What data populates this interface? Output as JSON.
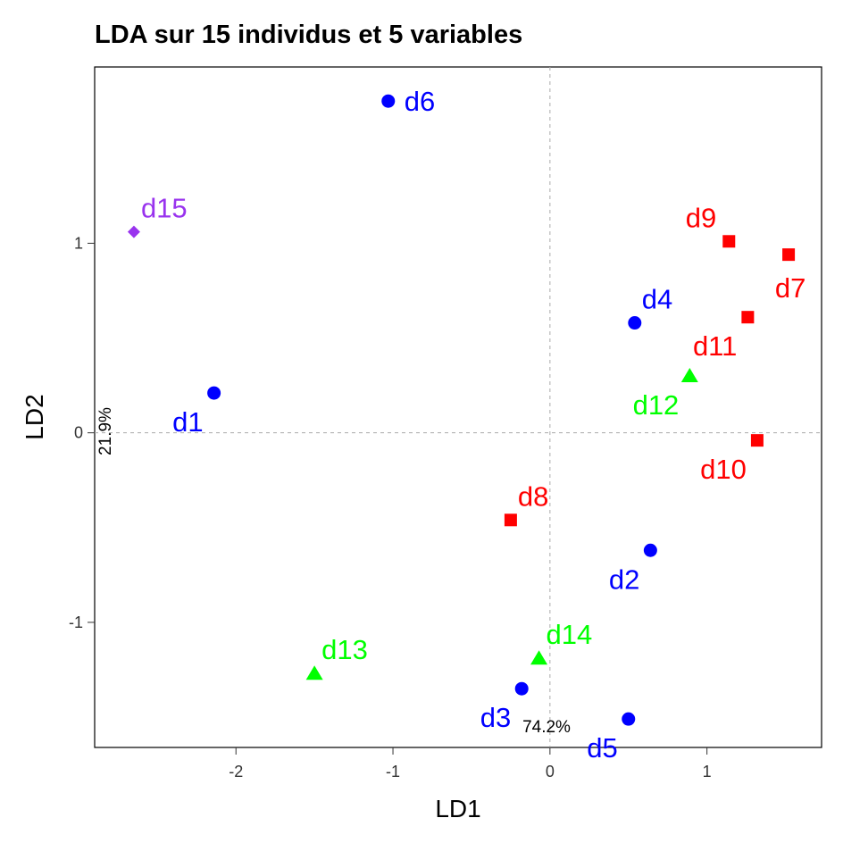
{
  "chart_data": {
    "type": "scatter",
    "title": "LDA sur 15 individus et 5 variables",
    "xlabel": "LD1",
    "ylabel": "LD2",
    "xlim": [
      -2.9,
      1.73
    ],
    "ylim": [
      -1.66,
      1.93
    ],
    "xticks": [
      -2,
      -1,
      0,
      1
    ],
    "yticks": [
      -1,
      0,
      1
    ],
    "xtick_labels": [
      "-2",
      "-1",
      "0",
      "1"
    ],
    "ytick_labels": [
      "-1",
      "0",
      "1"
    ],
    "x_pct": "74.2%",
    "y_pct": "21.9%",
    "grid": false,
    "reference_lines": {
      "x": 0,
      "y": 0,
      "style": "dashed"
    },
    "colors": {
      "blue": "#0000ff",
      "red": "#ff0000",
      "green": "#00ff00",
      "purple": "#9933ee"
    },
    "points": [
      {
        "label": "d1",
        "x": -2.14,
        "y": 0.21,
        "shape": "circle",
        "color": "#0000ff",
        "label_pos": "bottom-left"
      },
      {
        "label": "d2",
        "x": 0.64,
        "y": -0.62,
        "shape": "circle",
        "color": "#0000ff",
        "label_pos": "bottom-left"
      },
      {
        "label": "d3",
        "x": -0.18,
        "y": -1.35,
        "shape": "circle",
        "color": "#0000ff",
        "label_pos": "bottom-left"
      },
      {
        "label": "d4",
        "x": 0.54,
        "y": 0.58,
        "shape": "circle",
        "color": "#0000ff",
        "label_pos": "top-right"
      },
      {
        "label": "d5",
        "x": 0.5,
        "y": -1.51,
        "shape": "circle",
        "color": "#0000ff",
        "label_pos": "bottom-left"
      },
      {
        "label": "d6",
        "x": -1.03,
        "y": 1.75,
        "shape": "circle",
        "color": "#0000ff",
        "label_pos": "right"
      },
      {
        "label": "d7",
        "x": 1.52,
        "y": 0.94,
        "shape": "square",
        "color": "#ff0000",
        "label_pos": "bottom"
      },
      {
        "label": "d8",
        "x": -0.25,
        "y": -0.46,
        "shape": "square",
        "color": "#ff0000",
        "label_pos": "top-right"
      },
      {
        "label": "d9",
        "x": 1.14,
        "y": 1.01,
        "shape": "square",
        "color": "#ff0000",
        "label_pos": "top-left"
      },
      {
        "label": "d10",
        "x": 1.32,
        "y": -0.04,
        "shape": "square",
        "color": "#ff0000",
        "label_pos": "bottom-left"
      },
      {
        "label": "d11",
        "x": 1.26,
        "y": 0.61,
        "shape": "square",
        "color": "#ff0000",
        "label_pos": "bottom-left"
      },
      {
        "label": "d12",
        "x": 0.89,
        "y": 0.3,
        "shape": "triangle",
        "color": "#00ff00",
        "label_pos": "bottom-left"
      },
      {
        "label": "d13",
        "x": -1.5,
        "y": -1.27,
        "shape": "triangle",
        "color": "#00ff00",
        "label_pos": "top-right"
      },
      {
        "label": "d14",
        "x": -0.07,
        "y": -1.19,
        "shape": "triangle",
        "color": "#00ff00",
        "label_pos": "top-right"
      },
      {
        "label": "d15",
        "x": -2.65,
        "y": 1.06,
        "shape": "diamond",
        "color": "#9933ee",
        "label_pos": "top-right"
      }
    ]
  }
}
